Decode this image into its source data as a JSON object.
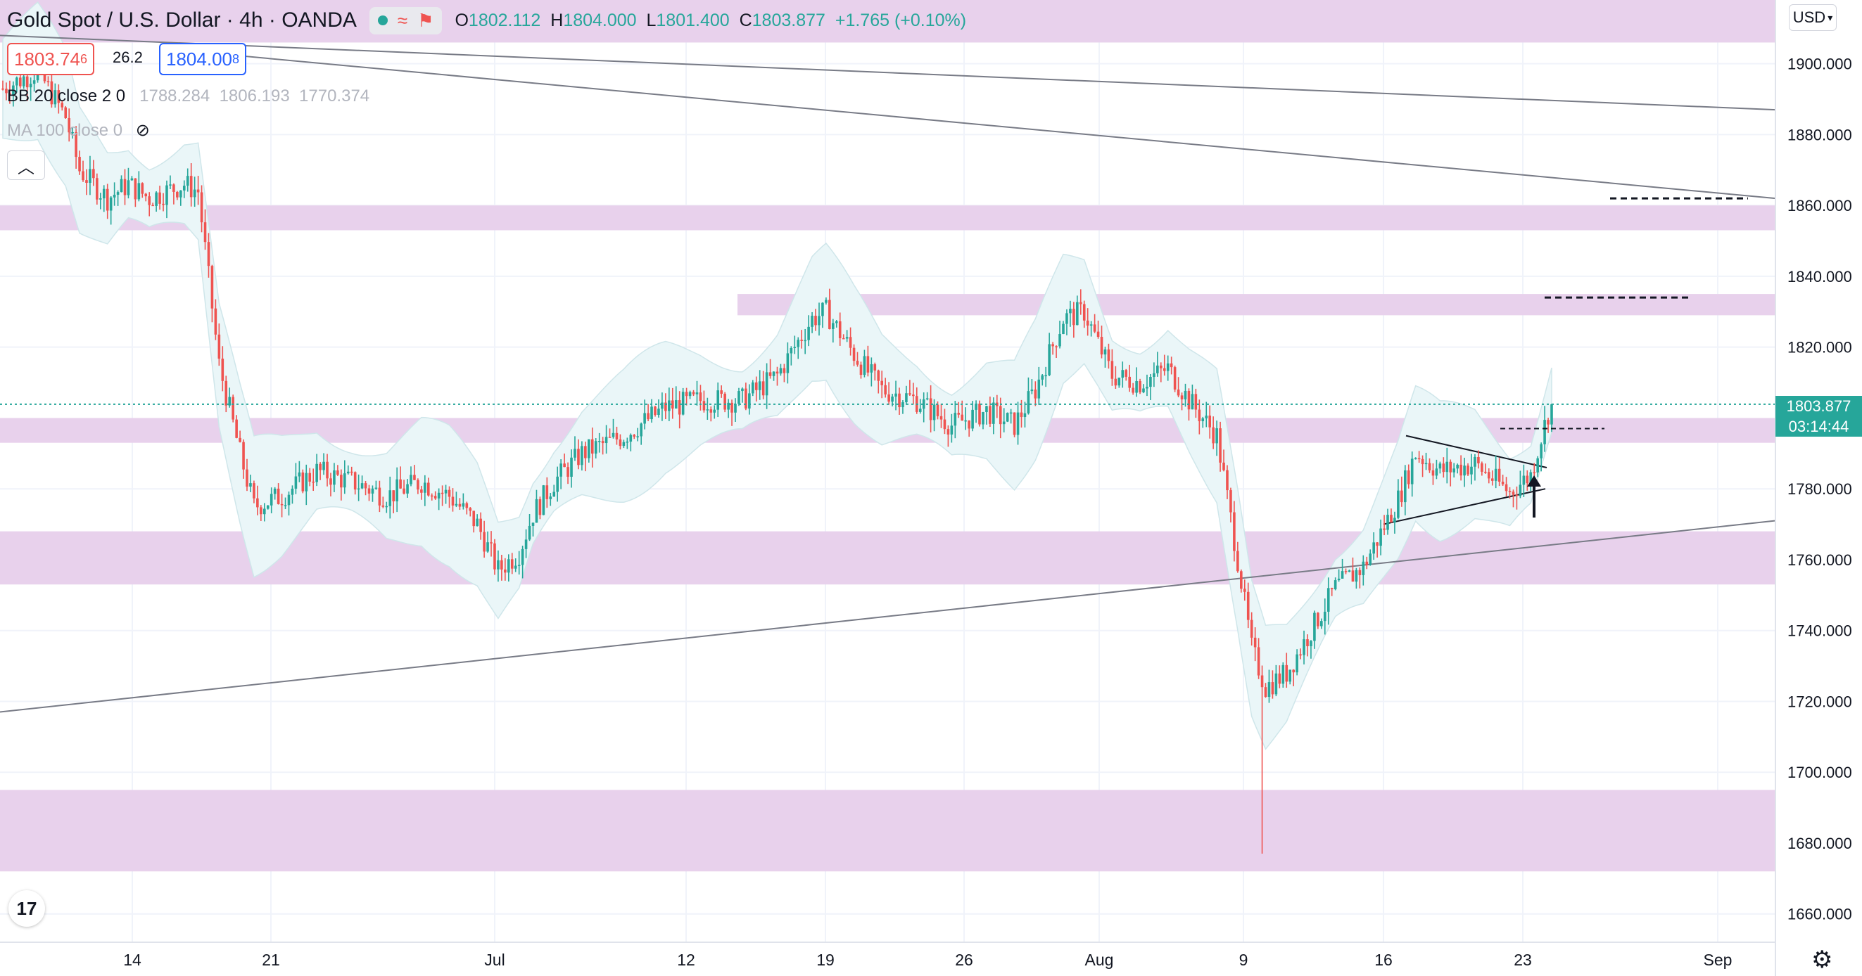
{
  "header": {
    "symbol": "Gold Spot / U.S. Dollar",
    "interval": "4h",
    "exchange": "OANDA",
    "open_label": "O",
    "open": "1802.112",
    "high_label": "H",
    "high": "1804.000",
    "low_label": "L",
    "low": "1801.400",
    "close_label": "C",
    "close": "1803.877",
    "change": "+1.765 (+0.10%)"
  },
  "quote": {
    "bid": "1803.74",
    "bid_small": "6",
    "spread": "26.2",
    "ask": "1804.00",
    "ask_small": "8"
  },
  "indicators": {
    "bb_label": "BB 20 close 2 0",
    "bb_basis": "1788.284",
    "bb_upper": "1806.193",
    "bb_lower": "1770.374",
    "ma_label": "MA 100 close 0"
  },
  "price_scale": {
    "currency": "USD",
    "current_price": "1803.877",
    "countdown": "03:14:44",
    "ticks": [
      "1900.000",
      "1880.000",
      "1860.000",
      "1840.000",
      "1820.000",
      "1780.000",
      "1760.000",
      "1740.000",
      "1720.000",
      "1700.000",
      "1680.000",
      "1660.000"
    ]
  },
  "time_scale": {
    "labels": [
      "14",
      "21",
      "Jul",
      "12",
      "19",
      "26",
      "Aug",
      "9",
      "16",
      "23",
      "Sep"
    ]
  },
  "colors": {
    "up": "#26a69a",
    "down": "#ef5350",
    "zone": "#e8d1ec",
    "bb_fill": "#eaf6f8"
  },
  "icons": {
    "visibility": "eye-off-icon",
    "collapse": "chevron-up-icon",
    "logo": "tradingview-logo",
    "settings": "gear-icon"
  },
  "chart_data": {
    "type": "candlestick",
    "ylim": [
      1652,
      1918
    ],
    "current_price": 1803.877,
    "support_resistance_zones": [
      [
        1906,
        1918
      ],
      [
        1853,
        1860
      ],
      [
        1829,
        1835
      ],
      [
        1793,
        1800
      ],
      [
        1753,
        1768
      ],
      [
        1672,
        1695
      ]
    ],
    "target_levels": [
      1862,
      1834,
      1797
    ],
    "key_prices": {
      "aug_9_low": 1677,
      "pre_jul_drop_high": 1870,
      "jul_low": 1751,
      "jul_high": 1834,
      "aug_rebound_low": 1718
    }
  }
}
